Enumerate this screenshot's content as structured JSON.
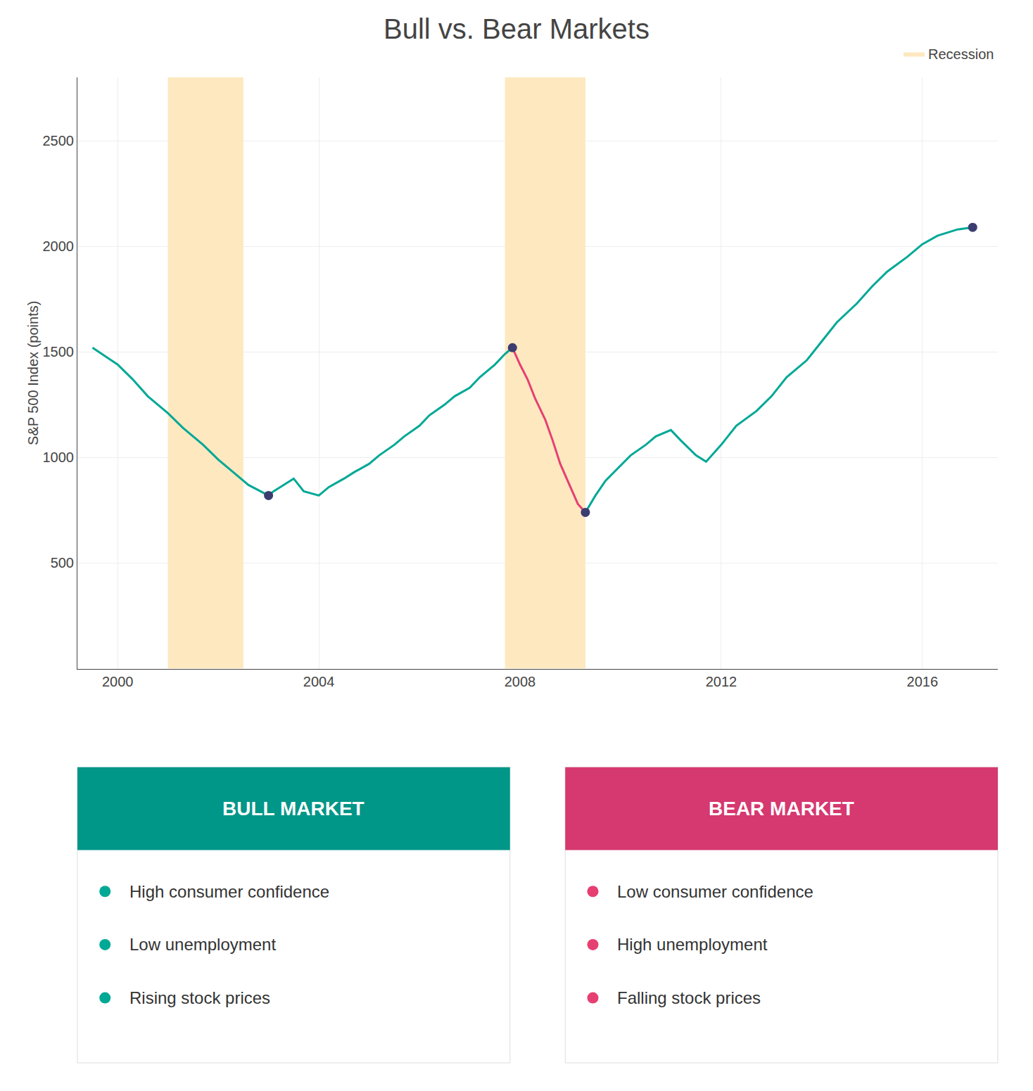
{
  "chart_data": {
    "type": "line",
    "title": "Bull vs. Bear Markets",
    "y_label": "S&P 500 Index (points)",
    "xlim": [
      1999.2,
      2017.5
    ],
    "xticks": [
      2000,
      2004,
      2008,
      2012,
      2016
    ],
    "ylim": [
      0,
      2800
    ],
    "yticks": [
      500,
      1000,
      1500,
      2000,
      2500
    ],
    "grid": true,
    "series": [
      {
        "color": "#00a896",
        "x": [
          1999.5,
          2000.0,
          2000.3,
          2000.6,
          2001.0,
          2001.3,
          2001.7,
          2002.0,
          2002.3,
          2002.6,
          2003.0,
          2003.1,
          2003.3,
          2003.5,
          2003.7,
          2004.0,
          2004.2,
          2004.5,
          2004.7,
          2005.0,
          2005.2,
          2005.5,
          2005.7,
          2006.0,
          2006.2,
          2006.5,
          2006.7,
          2007.0,
          2007.2,
          2007.5,
          2007.7,
          2007.85
        ],
        "values": [
          1520,
          1440,
          1370,
          1290,
          1210,
          1140,
          1060,
          990,
          930,
          870,
          820,
          840,
          870,
          900,
          840,
          820,
          860,
          900,
          930,
          970,
          1010,
          1060,
          1100,
          1150,
          1200,
          1250,
          1290,
          1330,
          1380,
          1440,
          1490,
          1520
        ]
      },
      {
        "color": "#e63f72",
        "x": [
          2007.85,
          2008.0,
          2008.15,
          2008.3,
          2008.5,
          2008.65,
          2008.8,
          2009.0,
          2009.15,
          2009.3
        ],
        "values": [
          1520,
          1440,
          1370,
          1280,
          1180,
          1080,
          970,
          860,
          780,
          740
        ]
      },
      {
        "color": "#00a896",
        "x": [
          2009.3,
          2009.5,
          2009.7,
          2010.0,
          2010.2,
          2010.5,
          2010.7,
          2011.0,
          2011.2,
          2011.5,
          2011.7,
          2012.0,
          2012.3,
          2012.7,
          2013.0,
          2013.3,
          2013.7,
          2014.0,
          2014.3,
          2014.7,
          2015.0,
          2015.3,
          2015.7,
          2016.0,
          2016.3,
          2016.7,
          2017.0
        ],
        "values": [
          740,
          820,
          890,
          960,
          1010,
          1060,
          1100,
          1130,
          1080,
          1010,
          980,
          1060,
          1150,
          1220,
          1290,
          1380,
          1460,
          1550,
          1640,
          1730,
          1810,
          1880,
          1950,
          2010,
          2050,
          2080,
          2090
        ]
      }
    ],
    "points": {
      "x": [
        2003.0,
        2007.85,
        2009.3,
        2017.0
      ],
      "values": [
        820,
        1520,
        740,
        2090
      ],
      "color": "#3b3d70"
    },
    "recession": {
      "name": "Recession",
      "color": "#fde8c0",
      "periods": [
        [
          2001.0,
          2002.5
        ],
        [
          2007.7,
          2009.3
        ]
      ]
    },
    "legend": "upper right",
    "info_boxes": [
      {
        "header": "BULL MARKET",
        "color": "#009688",
        "item_color": "#00a896",
        "items": [
          "High consumer confidence",
          "Low unemployment",
          "Rising stock prices"
        ]
      },
      {
        "header": "BEAR MARKET",
        "color": "#d63870",
        "item_color": "#e63f72",
        "items": [
          "Low consumer confidence",
          "High unemployment",
          "Falling stock prices"
        ]
      }
    ]
  }
}
